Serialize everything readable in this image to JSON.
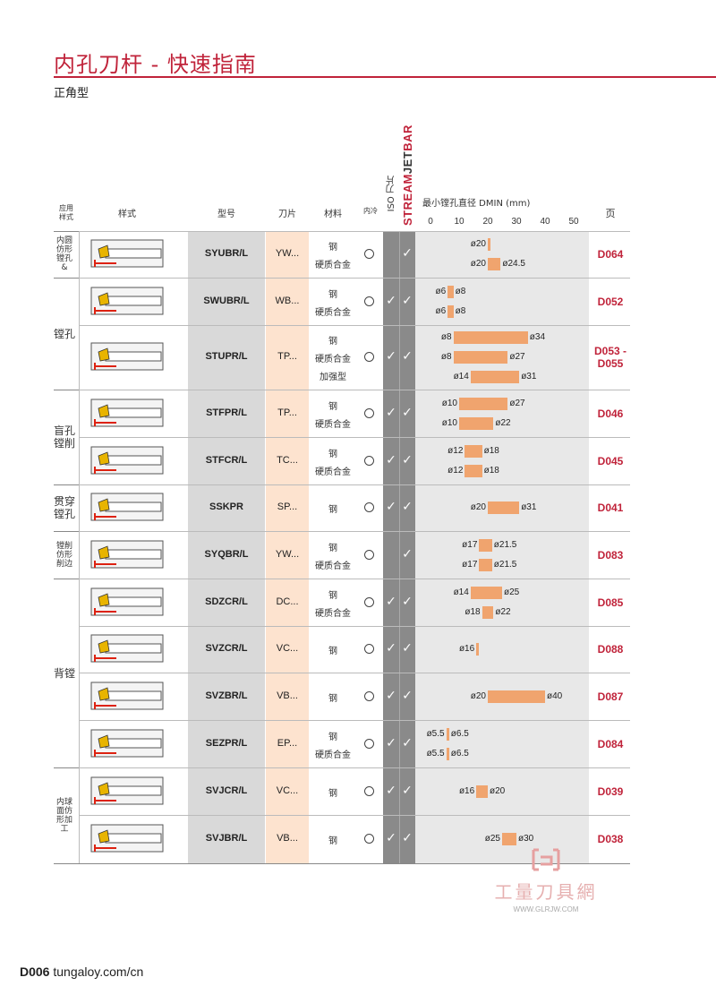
{
  "header": {
    "title": "内孔刀杆 - 快速指南",
    "subtitle": "正角型"
  },
  "columns": {
    "application": "应用\n样式",
    "style": "样式",
    "model": "型号",
    "insert": "刀片",
    "material": "材料",
    "coolant": "内冷",
    "iso": "ISO 刀片",
    "stream": "STREAMJETBAR",
    "dmin": "最小镗孔直径 DMIN (mm)",
    "page": "页",
    "ticks": [
      "0",
      "10",
      "20",
      "30",
      "40",
      "50"
    ]
  },
  "groups": [
    {
      "label": "内圆仿形镗孔&"
    },
    {
      "label": "镗孔"
    },
    {
      "label": "盲孔镗削"
    },
    {
      "label": "贯穿镗孔"
    },
    {
      "label": "镗削仿形削边"
    },
    {
      "label": "背镗"
    },
    {
      "label": "内球面仿形加工"
    }
  ],
  "rows": [
    {
      "model": "SYUBR/L",
      "insert": "YW...",
      "materials": [
        "钢",
        "硬质合金"
      ],
      "iso": false,
      "stream": true,
      "page": "D064",
      "ranges": [
        {
          "min": 20,
          "max": null,
          "lmin": "ø20",
          "lmax": ""
        },
        {
          "min": 20,
          "max": 24.5,
          "lmin": "ø20",
          "lmax": "ø24.5"
        }
      ]
    },
    {
      "model": "SWUBR/L",
      "insert": "WB...",
      "materials": [
        "钢",
        "硬质合金"
      ],
      "iso": true,
      "stream": true,
      "page": "D052",
      "ranges": [
        {
          "min": 6,
          "max": 8,
          "lmin": "ø6",
          "lmax": "ø8"
        },
        {
          "min": 6,
          "max": 8,
          "lmin": "ø6",
          "lmax": "ø8"
        }
      ]
    },
    {
      "model": "STUPR/L",
      "insert": "TP...",
      "materials": [
        "钢",
        "硬质合金",
        "加强型"
      ],
      "iso": true,
      "stream": true,
      "page": "D053 -\nD055",
      "ranges": [
        {
          "min": 8,
          "max": 34,
          "lmin": "ø8",
          "lmax": "ø34"
        },
        {
          "min": 8,
          "max": 27,
          "lmin": "ø8",
          "lmax": "ø27"
        },
        {
          "min": 14,
          "max": 31,
          "lmin": "ø14",
          "lmax": "ø31"
        }
      ]
    },
    {
      "model": "STFPR/L",
      "insert": "TP...",
      "materials": [
        "钢",
        "硬质合金"
      ],
      "iso": true,
      "stream": true,
      "page": "D046",
      "ranges": [
        {
          "min": 10,
          "max": 27,
          "lmin": "ø10",
          "lmax": "ø27"
        },
        {
          "min": 10,
          "max": 22,
          "lmin": "ø10",
          "lmax": "ø22"
        }
      ]
    },
    {
      "model": "STFCR/L",
      "insert": "TC...",
      "materials": [
        "钢",
        "硬质合金"
      ],
      "iso": true,
      "stream": true,
      "page": "D045",
      "ranges": [
        {
          "min": 12,
          "max": 18,
          "lmin": "ø12",
          "lmax": "ø18"
        },
        {
          "min": 12,
          "max": 18,
          "lmin": "ø12",
          "lmax": "ø18"
        }
      ]
    },
    {
      "model": "SSKPR",
      "insert": "SP...",
      "materials": [
        "钢"
      ],
      "iso": true,
      "stream": true,
      "page": "D041",
      "ranges": [
        {
          "min": 20,
          "max": 31,
          "lmin": "ø20",
          "lmax": "ø31"
        }
      ]
    },
    {
      "model": "SYQBR/L",
      "insert": "YW...",
      "materials": [
        "钢",
        "硬质合金"
      ],
      "iso": false,
      "stream": true,
      "page": "D083",
      "ranges": [
        {
          "min": 17,
          "max": 21.5,
          "lmin": "ø17",
          "lmax": "ø21.5"
        },
        {
          "min": 17,
          "max": 21.5,
          "lmin": "ø17",
          "lmax": "ø21.5"
        }
      ]
    },
    {
      "model": "SDZCR/L",
      "insert": "DC...",
      "materials": [
        "钢",
        "硬质合金"
      ],
      "iso": true,
      "stream": true,
      "page": "D085",
      "ranges": [
        {
          "min": 14,
          "max": 25,
          "lmin": "ø14",
          "lmax": "ø25"
        },
        {
          "min": 18,
          "max": 22,
          "lmin": "ø18",
          "lmax": "ø22"
        }
      ]
    },
    {
      "model": "SVZCR/L",
      "insert": "VC...",
      "materials": [
        "钢"
      ],
      "iso": true,
      "stream": true,
      "page": "D088",
      "ranges": [
        {
          "min": 16,
          "max": null,
          "lmin": "ø16",
          "lmax": ""
        }
      ]
    },
    {
      "model": "SVZBR/L",
      "insert": "VB...",
      "materials": [
        "钢"
      ],
      "iso": true,
      "stream": true,
      "page": "D087",
      "ranges": [
        {
          "min": 20,
          "max": 40,
          "lmin": "ø20",
          "lmax": "ø40"
        }
      ]
    },
    {
      "model": "SEZPR/L",
      "insert": "EP...",
      "materials": [
        "钢",
        "硬质合金"
      ],
      "iso": true,
      "stream": true,
      "page": "D084",
      "ranges": [
        {
          "min": 5.5,
          "max": 6.5,
          "lmin": "ø5.5",
          "lmax": "ø6.5"
        },
        {
          "min": 5.5,
          "max": 6.5,
          "lmin": "ø5.5",
          "lmax": "ø6.5"
        }
      ]
    },
    {
      "model": "SVJCR/L",
      "insert": "VC...",
      "materials": [
        "钢"
      ],
      "iso": true,
      "stream": true,
      "page": "D039",
      "ranges": [
        {
          "min": 16,
          "max": 20,
          "lmin": "ø16",
          "lmax": "ø20"
        }
      ]
    },
    {
      "model": "SVJBR/L",
      "insert": "VB...",
      "materials": [
        "钢"
      ],
      "iso": true,
      "stream": true,
      "page": "D038",
      "ranges": [
        {
          "min": 25,
          "max": 30,
          "lmin": "ø25",
          "lmax": "ø30"
        }
      ]
    }
  ],
  "footer": {
    "code": "D006",
    "url": "tungaloy.com/cn"
  },
  "watermark": {
    "brand": "工量刀具網",
    "url": "WWW.GLRJW.COM"
  },
  "colors": {
    "accent": "#c0233a",
    "bar": "#f0a46e",
    "insert_col": "#fde3cf"
  }
}
